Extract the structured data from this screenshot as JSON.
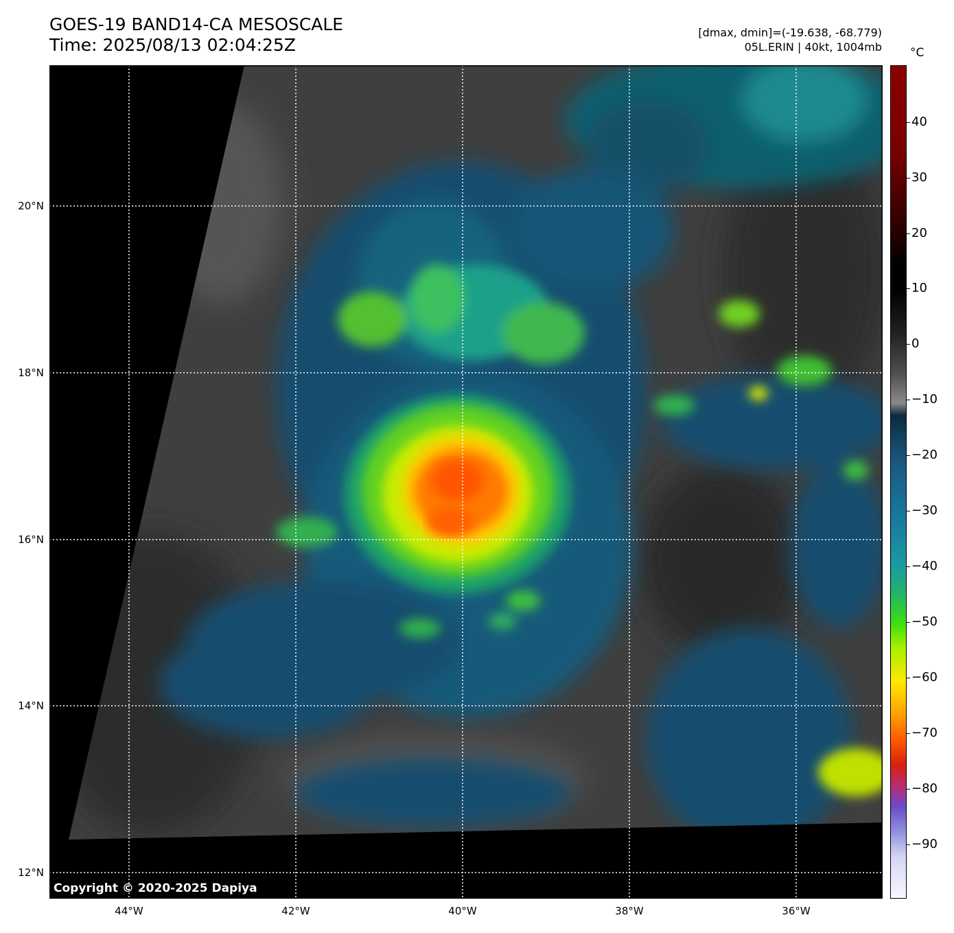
{
  "title": {
    "line1": "GOES-19 BAND14-CA MESOSCALE",
    "line2": "Time: 2025/08/13 02:04:25Z"
  },
  "meta": {
    "range": "[dmax, dmin]=(-19.638, -68.779)",
    "storm": "05L.ERIN | 40kt, 1004mb"
  },
  "map": {
    "lat_labels": [
      "20°N",
      "18°N",
      "16°N",
      "14°N",
      "12°N"
    ],
    "lon_labels": [
      "44°W",
      "42°W",
      "40°W",
      "38°W",
      "36°W"
    ],
    "copyright": "Copyright © 2020-2025 Dapiya"
  },
  "colorbar": {
    "unit": "°C",
    "ticks": [
      "40",
      "30",
      "20",
      "10",
      "0",
      "−10",
      "−20",
      "−30",
      "−40",
      "−50",
      "−60",
      "−70",
      "−80",
      "−90"
    ]
  }
}
